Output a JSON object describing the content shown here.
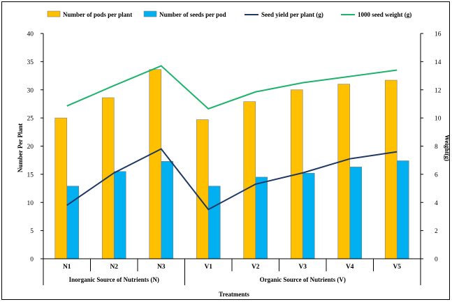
{
  "chart_data": {
    "type": "bar",
    "categories": [
      "N1",
      "N2",
      "N3",
      "V1",
      "V2",
      "V3",
      "V4",
      "V5"
    ],
    "groups": [
      {
        "label": "Inorganic Source of Nutrients (N)",
        "categories": [
          "N1",
          "N2",
          "N3"
        ]
      },
      {
        "label": "Organic Source of Nutrients (V)",
        "categories": [
          "V1",
          "V2",
          "V3",
          "V4",
          "V5"
        ]
      }
    ],
    "series": [
      {
        "name": "Number of pods per plant",
        "type": "bar",
        "axis": "left",
        "color": "#FFC000",
        "values": [
          25.0,
          28.6,
          33.6,
          24.7,
          27.9,
          30.0,
          31.0,
          31.7
        ]
      },
      {
        "name": "Number of seeds per pod",
        "type": "bar",
        "axis": "left",
        "color": "#00B0F0",
        "values": [
          12.9,
          15.5,
          17.3,
          12.9,
          14.5,
          15.2,
          16.3,
          17.4
        ]
      },
      {
        "name": "Seed yield per plant (g)",
        "type": "line",
        "axis": "right",
        "color": "#1F3864",
        "values": [
          3.8,
          6.1,
          7.8,
          3.5,
          5.3,
          6.1,
          7.1,
          7.6
        ]
      },
      {
        "name": "1000 seed weight (g)",
        "type": "line",
        "axis": "right",
        "color": "#1DB36B",
        "values": [
          10.85,
          12.3,
          13.7,
          10.65,
          11.85,
          12.5,
          12.95,
          13.4
        ]
      }
    ],
    "xlabel": "Treatments",
    "ylabel": "Number Per Plant",
    "y2label": "Weight(g)",
    "ylim": [
      0,
      40
    ],
    "y2lim": [
      0,
      16
    ],
    "yticks": [
      0,
      5,
      10,
      15,
      20,
      25,
      30,
      35,
      40
    ],
    "y2ticks": [
      0,
      2,
      4,
      6,
      8,
      10,
      12,
      14,
      16
    ],
    "grid": false,
    "legend_position": "top"
  }
}
